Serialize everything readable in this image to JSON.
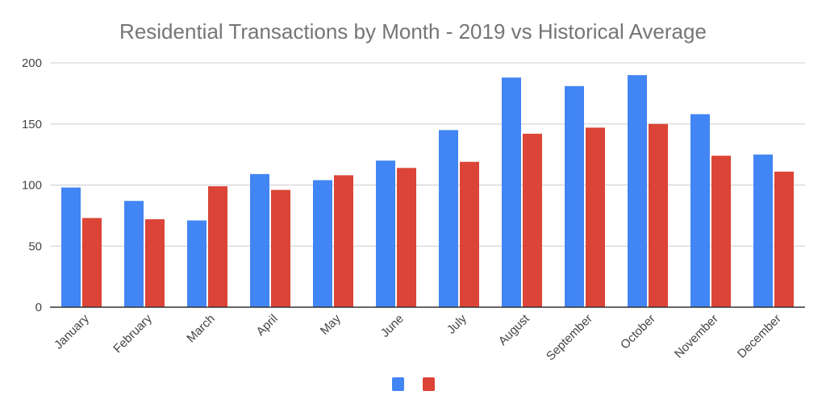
{
  "chart_data": {
    "type": "bar",
    "title": "Residential Transactions by Month - 2019 vs Historical Average",
    "xlabel": "",
    "ylabel": "",
    "categories": [
      "January",
      "February",
      "March",
      "April",
      "May",
      "June",
      "July",
      "August",
      "September",
      "October",
      "November",
      "December"
    ],
    "series": [
      {
        "color": "#4285f4",
        "values": [
          98,
          87,
          71,
          109,
          104,
          120,
          145,
          188,
          181,
          190,
          158,
          125
        ]
      },
      {
        "color": "#db4437",
        "values": [
          73,
          72,
          99,
          96,
          108,
          114,
          119,
          142,
          147,
          150,
          124,
          111
        ]
      }
    ],
    "ylim": [
      0,
      200
    ],
    "yticks": [
      0,
      50,
      100,
      150,
      200
    ],
    "grid": true,
    "legend": "bottom"
  }
}
